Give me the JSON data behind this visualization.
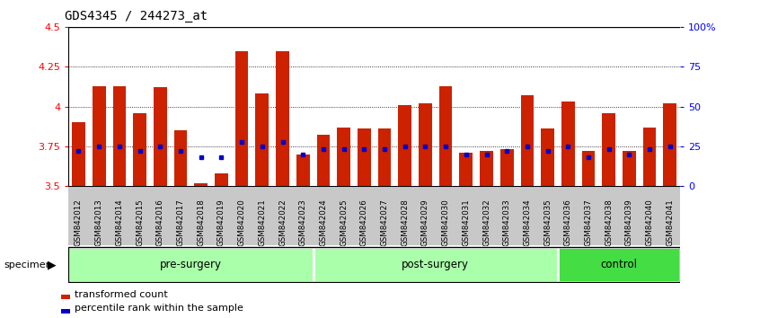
{
  "title": "GDS4345 / 244273_at",
  "samples": [
    "GSM842012",
    "GSM842013",
    "GSM842014",
    "GSM842015",
    "GSM842016",
    "GSM842017",
    "GSM842018",
    "GSM842019",
    "GSM842020",
    "GSM842021",
    "GSM842022",
    "GSM842023",
    "GSM842024",
    "GSM842025",
    "GSM842026",
    "GSM842027",
    "GSM842028",
    "GSM842029",
    "GSM842030",
    "GSM842031",
    "GSM842032",
    "GSM842033",
    "GSM842034",
    "GSM842035",
    "GSM842036",
    "GSM842037",
    "GSM842038",
    "GSM842039",
    "GSM842040",
    "GSM842041"
  ],
  "bar_values": [
    3.9,
    4.13,
    4.13,
    3.96,
    4.12,
    3.85,
    3.52,
    3.58,
    4.35,
    4.08,
    4.35,
    3.7,
    3.82,
    3.87,
    3.86,
    3.86,
    4.01,
    4.02,
    4.13,
    3.71,
    3.72,
    3.73,
    4.07,
    3.86,
    4.03,
    3.72,
    3.96,
    3.72,
    3.87,
    4.02
  ],
  "percentile_values": [
    3.72,
    3.75,
    3.75,
    3.72,
    3.75,
    3.72,
    3.68,
    3.68,
    3.78,
    3.75,
    3.78,
    3.7,
    3.73,
    3.73,
    3.73,
    3.73,
    3.75,
    3.75,
    3.75,
    3.7,
    3.7,
    3.72,
    3.75,
    3.72,
    3.75,
    3.68,
    3.73,
    3.7,
    3.73,
    3.75
  ],
  "groups": [
    {
      "name": "pre-surgery",
      "start": 0,
      "end": 11,
      "color": "#AAFFAA"
    },
    {
      "name": "post-surgery",
      "start": 12,
      "end": 23,
      "color": "#AAFFAA"
    },
    {
      "name": "control",
      "start": 24,
      "end": 29,
      "color": "#44DD44"
    }
  ],
  "ymin": 3.5,
  "ymax": 4.5,
  "yticks": [
    3.5,
    3.75,
    4.0,
    4.25,
    4.5
  ],
  "ytick_labels": [
    "3.5",
    "3.75",
    "4",
    "4.25",
    "4.5"
  ],
  "right_ytick_pcts": [
    0,
    25,
    50,
    75,
    100
  ],
  "right_ytick_labels": [
    "0",
    "25",
    "50",
    "75",
    "100%"
  ],
  "bar_color": "#CC2200",
  "percentile_color": "#0000CC",
  "xticklabel_bg": "#C8C8C8",
  "group_border_color": "#000000"
}
